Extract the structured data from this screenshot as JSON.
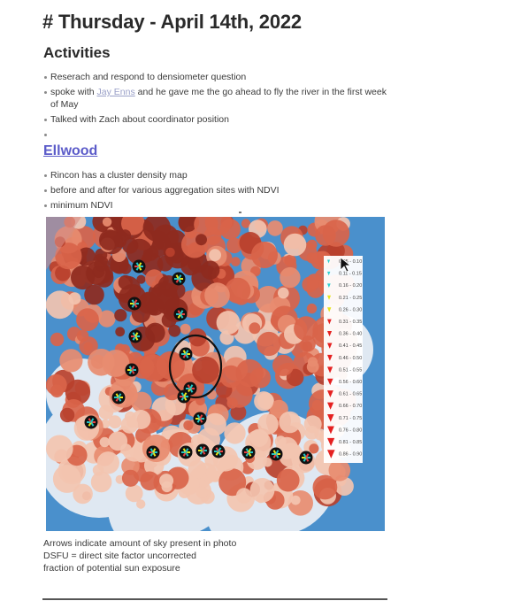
{
  "page_title": "# Thursday - April 14th, 2022",
  "activities": {
    "heading": "Activities",
    "items": [
      {
        "text": "Reserach and respond to densiometer question"
      },
      {
        "before": "spoke with ",
        "link": "Jay Enns",
        "after": " and he gave me the go ahead to fly the river in the first week of May"
      },
      {
        "text": "Talked with Zach about coordinator position"
      },
      {
        "text": ""
      }
    ]
  },
  "ellwood": {
    "heading": "Ellwood",
    "items": [
      "Rincon has a cluster density map",
      "before and after for various aggregation sites with NDVI",
      "minimum NDVI"
    ]
  },
  "map": {
    "legend": [
      {
        "label": "0.05 - 0.10",
        "color": "#2ad0d0"
      },
      {
        "label": "0.11 - 0.15",
        "color": "#2ad0d0"
      },
      {
        "label": "0.16 - 0.20",
        "color": "#2ad0d0"
      },
      {
        "label": "0.21 - 0.25",
        "color": "#e6e61a"
      },
      {
        "label": "0.26 - 0.30",
        "color": "#e6e61a"
      },
      {
        "label": "0.31 - 0.35",
        "color": "#e52020"
      },
      {
        "label": "0.36 - 0.40",
        "color": "#e52020"
      },
      {
        "label": "0.41 - 0.45",
        "color": "#e52020"
      },
      {
        "label": "0.46 - 0.50",
        "color": "#e52020"
      },
      {
        "label": "0.51 - 0.55",
        "color": "#e52020"
      },
      {
        "label": "0.56 - 0.60",
        "color": "#e52020"
      },
      {
        "label": "0.61 - 0.65",
        "color": "#e52020"
      },
      {
        "label": "0.66 - 0.70",
        "color": "#e52020"
      },
      {
        "label": "0.71 - 0.75",
        "color": "#e52020"
      },
      {
        "label": "0.76 - 0.80",
        "color": "#e52020"
      },
      {
        "label": "0.81 - 0.85",
        "color": "#e52020"
      },
      {
        "label": "0.86 - 0.90",
        "color": "#e52020"
      }
    ],
    "colors": {
      "water": "#3a86c8",
      "canopy_high": "#8e2a1e",
      "canopy_mid": "#d9644a",
      "canopy_low": "#f3c4b0",
      "open": "#dfe8f2"
    }
  },
  "caption": {
    "lines": [
      "Arrows indicate amount of sky present in photo",
      "DSFU = direct site factor uncorrected",
      "fraction of potential sun exposure"
    ]
  }
}
